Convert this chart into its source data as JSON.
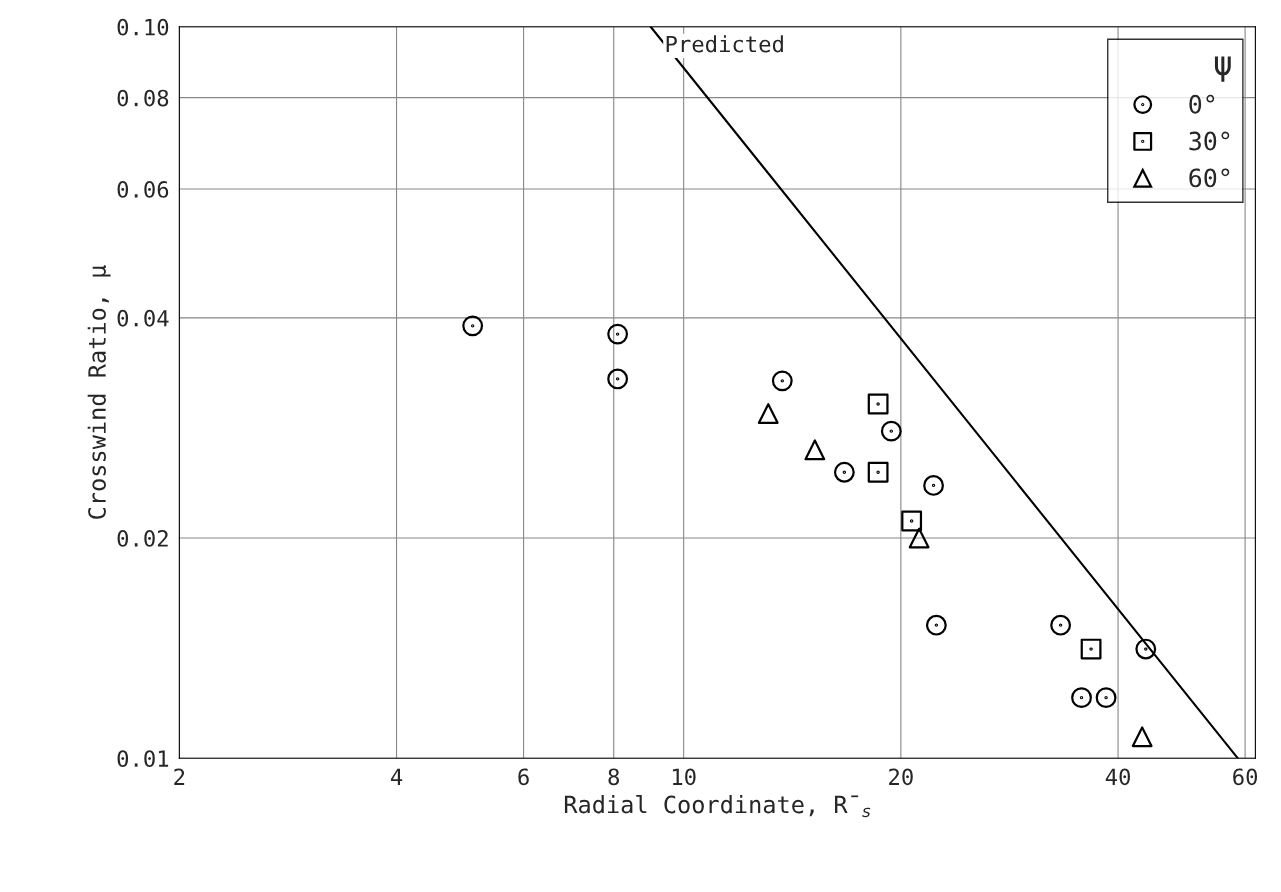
{
  "chart_data": {
    "type": "scatter",
    "xlabel": "Radial Coordinate, R̄$_{s}$",
    "ylabel": "Crosswind Ratio, μ",
    "legend_title": "ψ",
    "log": "xy",
    "grid": true,
    "legend": "top right",
    "xlim": [
      2,
      62
    ],
    "ylim": [
      0.01,
      0.1
    ],
    "xticks": [
      2,
      4,
      6,
      8,
      10,
      20,
      40,
      60
    ],
    "yticks": [
      {
        "value": 0.01,
        "label": "0.01"
      },
      {
        "value": 0.02,
        "label": "0.02"
      },
      {
        "value": 0.04,
        "label": "0.04"
      },
      {
        "value": 0.06,
        "label": "0.06"
      },
      {
        "value": 0.08,
        "label": "0.08"
      },
      {
        "value": 0.1,
        "label": "0.10"
      }
    ],
    "series": [
      {
        "name": "0°",
        "color": "#000000",
        "marker": "circle",
        "x": [
          5.1,
          8.1,
          8.1,
          13.7,
          16.7,
          19.4,
          22.2,
          22.4,
          33.3,
          35.6,
          38.5,
          43.7
        ],
        "values": [
          0.039,
          0.038,
          0.033,
          0.0328,
          0.0246,
          0.028,
          0.0236,
          0.0152,
          0.0152,
          0.0121,
          0.0121,
          0.0141
        ]
      },
      {
        "name": "30°",
        "color": "#000000",
        "marker": "square",
        "x": [
          18.6,
          18.6,
          20.7,
          36.7
        ],
        "values": [
          0.0305,
          0.0246,
          0.0211,
          0.0141
        ]
      },
      {
        "name": "60°",
        "color": "#000000",
        "marker": "triangle",
        "x": [
          13.1,
          15.2,
          21.2,
          43.2
        ],
        "values": [
          0.0296,
          0.0264,
          0.02,
          0.0107
        ]
      },
      {
        "name": "Predicted",
        "type": "line",
        "color": "#000000",
        "line_style": "solid",
        "x": [
          9.0,
          58.6
        ],
        "values": [
          0.1,
          0.01
        ]
      }
    ]
  }
}
